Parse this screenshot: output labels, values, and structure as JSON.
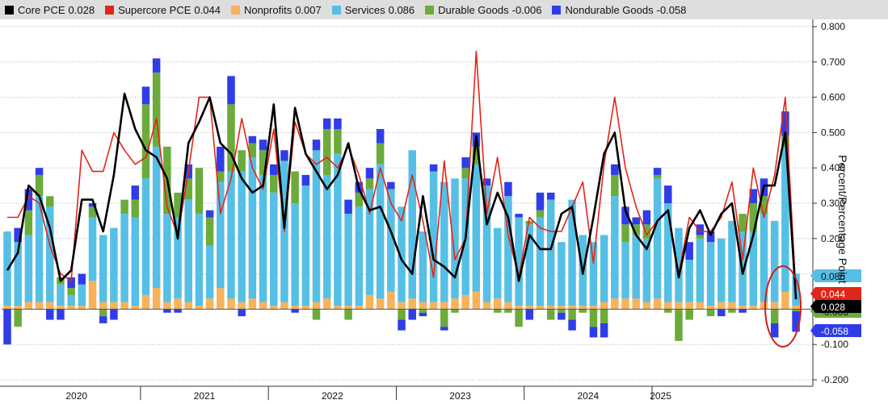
{
  "legend": [
    {
      "name": "Core PCE",
      "value": "0.028",
      "color": "#000000"
    },
    {
      "name": "Supercore PCE",
      "value": "0.044",
      "color": "#e0261a"
    },
    {
      "name": "Nonprofits",
      "value": "0.007",
      "color": "#f7b25a"
    },
    {
      "name": "Services",
      "value": "0.086",
      "color": "#56bfe6"
    },
    {
      "name": "Durable Goods",
      "value": "-0.006",
      "color": "#6bab3c"
    },
    {
      "name": "Nondurable Goods",
      "value": "-0.058",
      "color": "#2f3de8"
    }
  ],
  "y_axis_label": "Percent/Percentage Point",
  "y_tick_labels": [
    "0.800",
    "0.700",
    "0.600",
    "0.500",
    "0.400",
    "0.300",
    "0.200",
    "0.100",
    "0.000",
    "-0.100",
    "-0.200"
  ],
  "x_tick_labels": [
    "2020",
    "2021",
    "2022",
    "2023",
    "2024",
    "2025"
  ],
  "last_value_tags": [
    {
      "label": "0.086",
      "color": "#56bfe6",
      "text_color": "#111111",
      "value": 0.086
    },
    {
      "label": "0.044",
      "color": "#e0261a",
      "text_color": "#ffffff",
      "value": 0.044
    },
    {
      "label": "-0.006",
      "color": "#6bab3c",
      "text_color": "#111111",
      "value": -0.006
    },
    {
      "label": "0.028",
      "color": "#000000",
      "text_color": "#ffffff",
      "value": 0.028
    },
    {
      "label": "-0.058",
      "color": "#2f3de8",
      "text_color": "#ffffff",
      "value": -0.058
    }
  ],
  "chart_data": {
    "type": "bar",
    "title": "",
    "ylabel": "Percent/Percentage Point",
    "ylim": [
      -0.2,
      0.8
    ],
    "grid": true,
    "legend_position": "top",
    "start_month": "2019-12",
    "series": [
      {
        "name": "Services",
        "values": [
          0.21,
          0.18,
          0.19,
          0.3,
          0.27,
          0.06,
          0.03,
          0.06,
          0.18,
          0.19,
          0.21,
          0.25,
          0.25,
          0.33,
          0.4,
          0.25,
          0.23,
          0.29,
          0.26,
          0.15,
          0.3,
          0.36,
          0.37,
          0.4,
          0.36,
          0.32,
          0.4,
          0.29,
          0.34,
          0.43,
          0.35,
          0.43,
          0.26,
          0.28,
          0.3,
          0.38,
          0.29,
          0.27,
          0.42,
          0.2,
          0.37,
          0.34,
          0.34,
          0.33,
          0.36,
          0.33,
          0.2,
          0.3,
          0.25,
          0.23,
          0.25,
          0.3,
          0.18,
          0.3,
          0.2,
          0.18,
          0.19,
          0.29,
          0.16,
          0.18,
          0.18,
          0.34,
          0.28,
          0.21,
          0.12,
          0.18,
          0.18,
          0.18,
          0.23,
          0.21,
          0.21,
          0.25,
          0.23,
          0.41,
          0.09
        ]
      },
      {
        "name": "Nonprofits",
        "values": [
          0.01,
          0.01,
          0.02,
          0.02,
          0.02,
          0.01,
          0.01,
          0.01,
          0.08,
          0.02,
          0.02,
          0.02,
          0.01,
          0.04,
          0.06,
          0.02,
          0.03,
          0.02,
          0.01,
          0.03,
          0.06,
          0.03,
          0.02,
          0.03,
          0.02,
          0.01,
          0.02,
          0.01,
          0.01,
          0.02,
          0.03,
          0.01,
          0.01,
          0.01,
          0.04,
          0.03,
          0.05,
          0.02,
          0.03,
          0.02,
          0.02,
          0.02,
          0.03,
          0.04,
          0.05,
          0.02,
          0.03,
          0.02,
          0.01,
          0.01,
          0.01,
          0.01,
          0.01,
          0.01,
          0.01,
          0.01,
          0.02,
          0.03,
          0.03,
          0.03,
          0.02,
          0.03,
          0.02,
          0.02,
          0.02,
          0.02,
          0.01,
          0.02,
          0.02,
          0.01,
          0.01,
          0.02,
          0.02,
          0.05,
          0.01
        ]
      },
      {
        "name": "Durable Goods",
        "values": [
          0.0,
          -0.05,
          0.07,
          0.06,
          0.03,
          0.02,
          0.02,
          0.0,
          0.03,
          -0.02,
          0.0,
          0.04,
          0.05,
          0.21,
          0.21,
          0.19,
          0.07,
          0.06,
          0.13,
          0.08,
          0.03,
          0.19,
          0.06,
          0.04,
          0.07,
          0.05,
          0.0,
          0.09,
          0.0,
          -0.03,
          0.13,
          0.07,
          -0.03,
          0.04,
          0.03,
          0.06,
          0.0,
          -0.03,
          0.0,
          -0.01,
          0.0,
          -0.05,
          -0.01,
          0.03,
          0.05,
          0.0,
          -0.01,
          -0.01,
          -0.05,
          0.01,
          0.02,
          -0.03,
          -0.01,
          -0.03,
          -0.01,
          -0.05,
          -0.04,
          0.06,
          0.05,
          0.03,
          0.04,
          0.01,
          -0.01,
          -0.09,
          -0.03,
          0.01,
          -0.02,
          0.0,
          -0.01,
          0.05,
          0.08,
          0.05,
          -0.04,
          0.03,
          -0.006
        ]
      },
      {
        "name": "Nondurable Goods",
        "values": [
          -0.1,
          0.04,
          0.06,
          0.02,
          -0.03,
          -0.03,
          0.03,
          0.03,
          0.01,
          -0.02,
          -0.03,
          0.0,
          0.04,
          0.05,
          0.04,
          -0.01,
          -0.01,
          0.04,
          0.0,
          0.02,
          0.07,
          0.08,
          -0.02,
          0.02,
          0.03,
          0.03,
          0.03,
          -0.01,
          0.03,
          0.03,
          0.03,
          0.03,
          0.04,
          0.03,
          0.03,
          0.04,
          0.02,
          -0.03,
          -0.03,
          -0.01,
          0.02,
          -0.01,
          0.0,
          0.03,
          0.04,
          0.02,
          0.0,
          0.04,
          0.01,
          -0.03,
          0.05,
          0.02,
          -0.02,
          -0.03,
          0.0,
          -0.03,
          -0.04,
          0.03,
          0.05,
          0.02,
          0.04,
          0.02,
          0.05,
          0.0,
          0.05,
          0.03,
          0.03,
          -0.02,
          0.0,
          -0.01,
          0.04,
          0.05,
          -0.04,
          0.07,
          -0.058
        ]
      },
      {
        "name": "Core PCE",
        "values": [
          0.11,
          0.16,
          0.35,
          0.32,
          0.23,
          0.08,
          0.11,
          0.31,
          0.31,
          0.22,
          0.38,
          0.61,
          0.51,
          0.45,
          0.43,
          0.37,
          0.2,
          0.47,
          0.53,
          0.6,
          0.47,
          0.44,
          0.37,
          0.33,
          0.35,
          0.58,
          0.23,
          0.57,
          0.44,
          0.39,
          0.34,
          0.38,
          0.47,
          0.34,
          0.28,
          0.29,
          0.22,
          0.14,
          0.1,
          0.32,
          0.14,
          0.12,
          0.09,
          0.2,
          0.49,
          0.24,
          0.33,
          0.26,
          0.08,
          0.21,
          0.17,
          0.17,
          0.27,
          0.29,
          0.1,
          0.26,
          0.44,
          0.5,
          0.28,
          0.21,
          0.17,
          0.25,
          0.28,
          0.09,
          0.23,
          0.28,
          0.21,
          0.27,
          0.3,
          0.1,
          0.21,
          0.35,
          0.35,
          0.5,
          0.028
        ]
      },
      {
        "name": "Supercore PCE",
        "values": [
          0.26,
          0.26,
          0.32,
          0.3,
          0.18,
          0.1,
          0.08,
          0.45,
          0.39,
          0.39,
          0.5,
          0.45,
          0.41,
          0.43,
          0.54,
          0.29,
          0.21,
          0.39,
          0.6,
          0.6,
          0.27,
          0.37,
          0.54,
          0.4,
          0.34,
          0.51,
          0.22,
          0.53,
          0.44,
          0.41,
          0.43,
          0.4,
          0.46,
          0.38,
          0.27,
          0.4,
          0.3,
          0.25,
          0.38,
          0.25,
          0.09,
          0.42,
          0.14,
          0.2,
          0.73,
          0.27,
          0.43,
          0.21,
          0.09,
          0.26,
          0.23,
          0.22,
          0.22,
          0.29,
          0.36,
          0.13,
          0.41,
          0.6,
          0.4,
          0.29,
          0.21,
          0.25,
          0.28,
          0.1,
          0.26,
          0.22,
          0.22,
          0.26,
          0.36,
          0.14,
          0.4,
          0.26,
          0.38,
          0.6,
          0.044
        ]
      }
    ]
  }
}
